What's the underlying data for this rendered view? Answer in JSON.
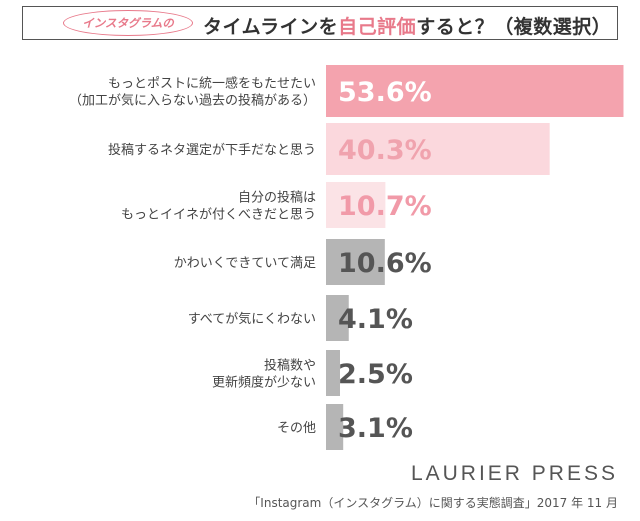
{
  "header": {
    "pill_text": "インスタグラムの",
    "title_pre": "タイムラインを",
    "title_highlight": "自己評価",
    "title_post": "すると？（複数選択）"
  },
  "chart_data": {
    "type": "bar",
    "orientation": "horizontal",
    "unit": "%",
    "categories": [
      [
        "もっとポストに統一感をもたせたい",
        "（加工が気に入らない過去の投稿がある）"
      ],
      [
        "投稿するネタ選定が下手だなと思う"
      ],
      [
        "自分の投稿は",
        "もっとイイネが付くべきだと思う"
      ],
      [
        "かわいくできていて満足"
      ],
      [
        "すべてが気にくわない"
      ],
      [
        "投稿数や",
        "更新頻度が少ない"
      ],
      [
        "その他"
      ]
    ],
    "values": [
      53.6,
      40.3,
      10.7,
      10.6,
      4.1,
      2.5,
      3.1
    ],
    "value_labels": [
      "53.6%",
      "40.3%",
      "10.7%",
      "10.6%",
      "4.1%",
      "2.5%",
      "3.1%"
    ],
    "colors": {
      "top_bar": "#f4a3ae",
      "top_text": "#ffffff",
      "second_bar": "#fbd8dd",
      "second_text": "#f0a3ae",
      "third_bar": "#fbe3e6",
      "third_text": "#f19aa8",
      "gray_bar": "#b5b5b5",
      "gray_text": "#555555"
    },
    "xlim": [
      0,
      55
    ]
  },
  "footer": {
    "brand": "LAURIER PRESS",
    "source": "「Instagram（インスタグラム）に関する実態調査」2017 年 11 月"
  }
}
